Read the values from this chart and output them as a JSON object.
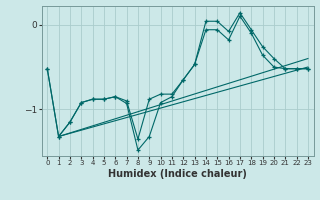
{
  "bg_color": "#cce8e8",
  "grid_color": "#aacccc",
  "line_color": "#006868",
  "xlabel": "Humidex (Indice chaleur)",
  "xlim": [
    -0.5,
    23.5
  ],
  "ylim": [
    -1.55,
    0.22
  ],
  "yticks": [
    -1,
    0
  ],
  "xticks": [
    0,
    1,
    2,
    3,
    4,
    5,
    6,
    7,
    8,
    9,
    10,
    11,
    12,
    13,
    14,
    15,
    16,
    17,
    18,
    19,
    20,
    21,
    22,
    23
  ],
  "series1_x": [
    0,
    1,
    2,
    3,
    4,
    5,
    6,
    7,
    8,
    9,
    10,
    11,
    12,
    13,
    14,
    15,
    16,
    17,
    18,
    19,
    20,
    21,
    22,
    23
  ],
  "series1_y": [
    -0.52,
    -1.32,
    -1.15,
    -0.92,
    -0.88,
    -0.88,
    -0.85,
    -0.9,
    -1.35,
    -0.88,
    -0.82,
    -0.82,
    -0.65,
    -0.47,
    0.04,
    0.04,
    -0.08,
    0.14,
    -0.06,
    -0.26,
    -0.4,
    -0.52,
    -0.52,
    -0.52
  ],
  "series2_x": [
    0,
    1,
    2,
    3,
    4,
    5,
    6,
    7,
    8,
    9,
    10,
    11,
    12,
    13,
    14,
    15,
    16,
    17,
    18,
    19,
    20,
    21,
    22,
    23
  ],
  "series2_y": [
    -0.52,
    -1.32,
    -1.15,
    -0.92,
    -0.88,
    -0.88,
    -0.85,
    -0.93,
    -1.48,
    -1.32,
    -0.92,
    -0.85,
    -0.65,
    -0.47,
    -0.06,
    -0.06,
    -0.18,
    0.1,
    -0.1,
    -0.36,
    -0.5,
    -0.52,
    -0.52,
    -0.52
  ],
  "line1_x": [
    1,
    23
  ],
  "line1_y": [
    -1.32,
    -0.5
  ],
  "line2_x": [
    1,
    23
  ],
  "line2_y": [
    -1.32,
    -0.4
  ],
  "xlabel_fontsize": 7,
  "tick_fontsize": 6
}
